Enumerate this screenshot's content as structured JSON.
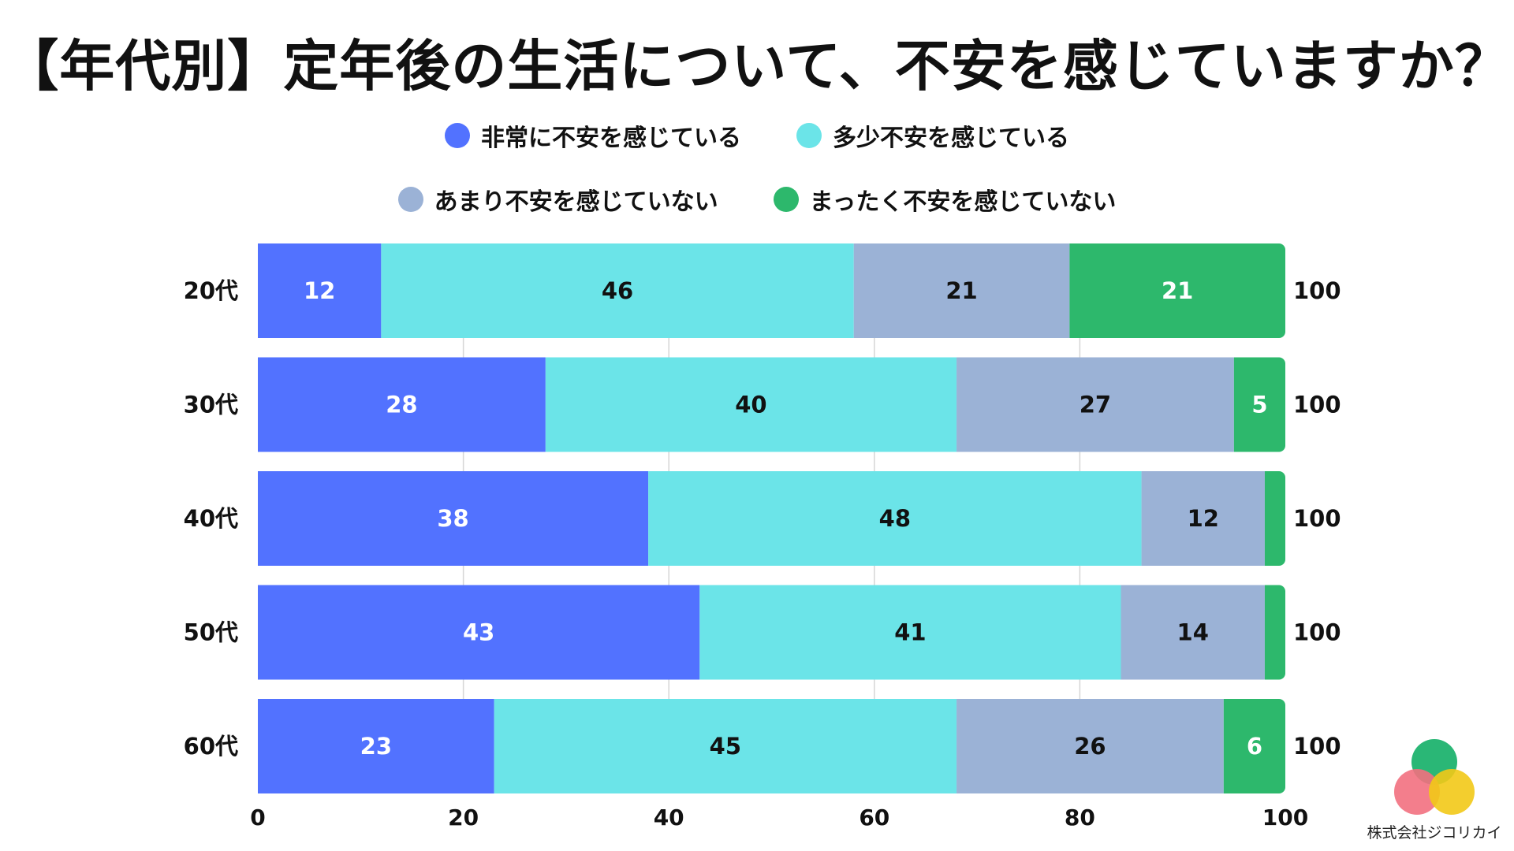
{
  "title": "【年代別】定年後の生活について、不安を感じていますか？",
  "legend": [
    {
      "label": "非常に不安を感じている",
      "color": "#5272FF"
    },
    {
      "label": "多少不安を感じている",
      "color": "#6BE4E8"
    },
    {
      "label": "あまり不安を感じていない",
      "color": "#9BB2D6"
    },
    {
      "label": "まったく不安を感じていない",
      "color": "#2DB86C"
    }
  ],
  "chart_data": {
    "type": "bar",
    "orientation": "horizontal",
    "stacked": true,
    "categories": [
      "20代",
      "30代",
      "40代",
      "50代",
      "60代"
    ],
    "series": [
      {
        "name": "非常に不安を感じている",
        "color": "#5272FF",
        "label_color": "#ffffff",
        "values": [
          12,
          28,
          38,
          43,
          23
        ]
      },
      {
        "name": "多少不安を感じている",
        "color": "#6BE4E8",
        "label_color": "#111111",
        "values": [
          46,
          40,
          48,
          41,
          45
        ]
      },
      {
        "name": "あまり不安を感じていない",
        "color": "#9BB2D6",
        "label_color": "#111111",
        "values": [
          21,
          27,
          12,
          14,
          26
        ]
      },
      {
        "name": "まったく不安を感じていない",
        "color": "#2DB86C",
        "label_color": "#ffffff",
        "values": [
          21,
          5,
          2,
          2,
          6
        ]
      }
    ],
    "value_labels": [
      [
        "12",
        "46",
        "21",
        "21"
      ],
      [
        "28",
        "40",
        "27",
        "5"
      ],
      [
        "38",
        "48",
        "12",
        ""
      ],
      [
        "43",
        "41",
        "14",
        ""
      ],
      [
        "23",
        "45",
        "26",
        "6"
      ]
    ],
    "totals": [
      "100",
      "100",
      "100",
      "100",
      "100"
    ],
    "xlim": [
      0,
      100
    ],
    "xticks": [
      "0",
      "20",
      "40",
      "60",
      "80",
      "100"
    ],
    "grid": "vertical"
  },
  "logo": {
    "text": "株式会社ジコリカイ",
    "colors": [
      "#1FB36F",
      "#F2707F",
      "#F2C917"
    ]
  }
}
